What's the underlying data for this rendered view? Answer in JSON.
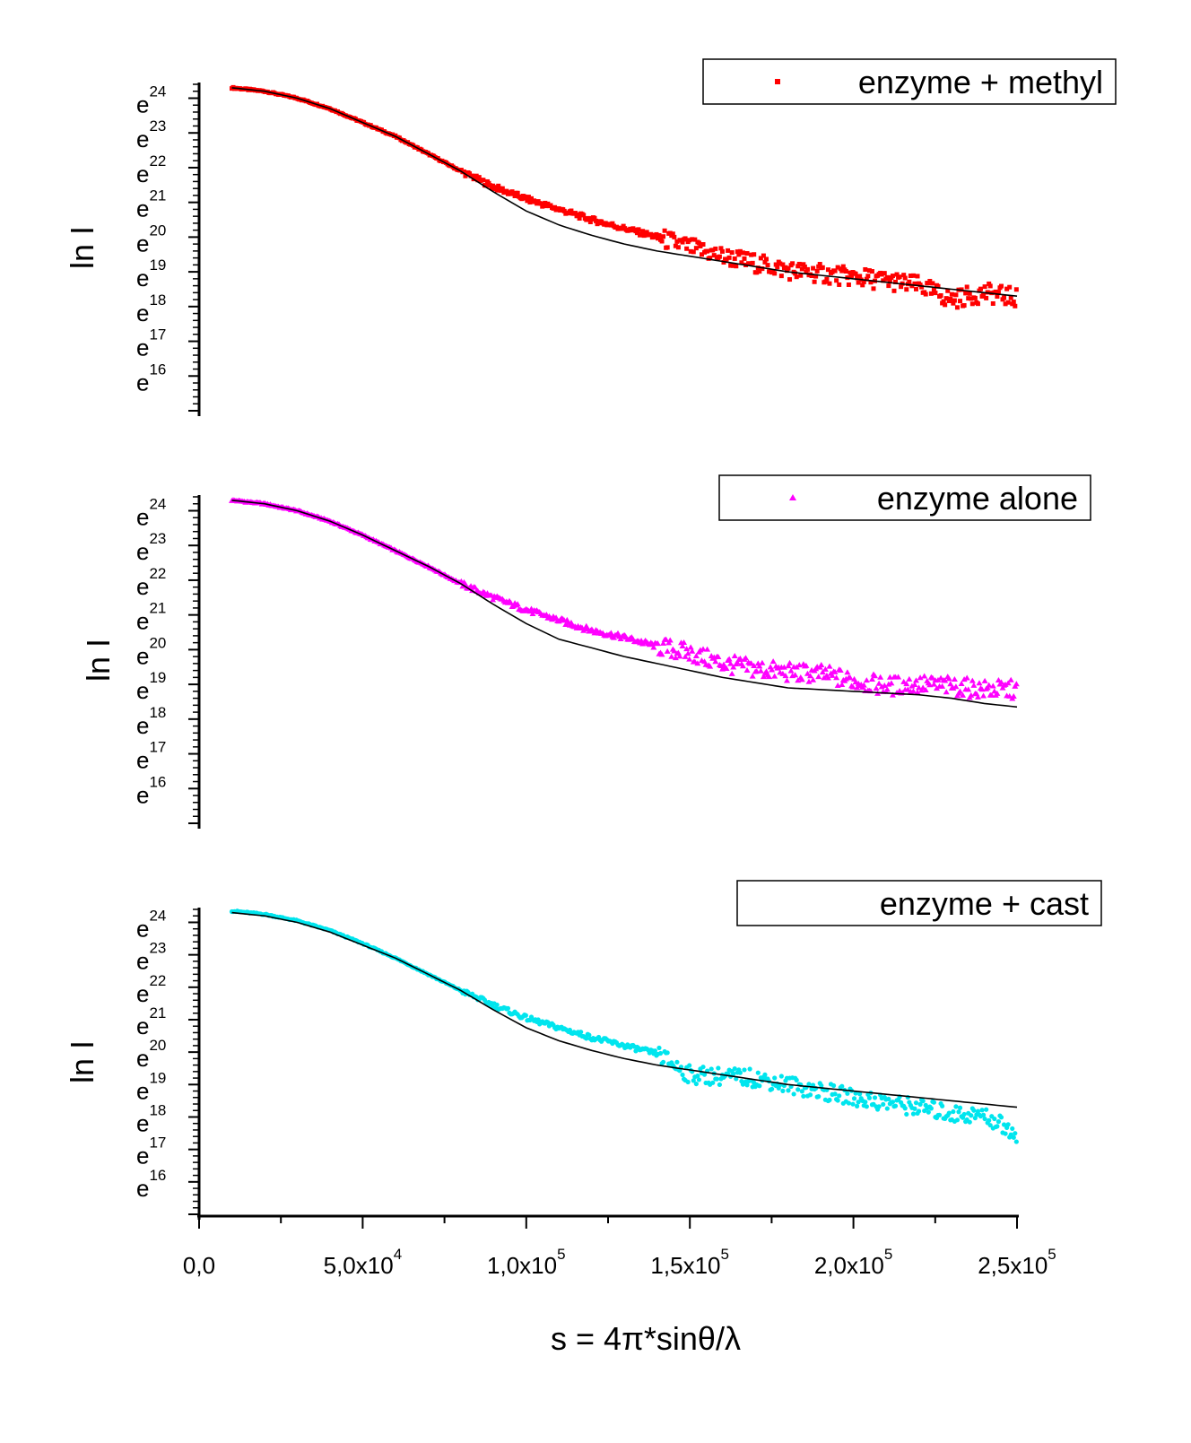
{
  "chart_data": [
    {
      "type": "scatter",
      "ylabel": "ln I",
      "ytick_labels": [
        "e16",
        "e17",
        "e18",
        "e19",
        "e20",
        "e21",
        "e22",
        "e23",
        "e24"
      ],
      "ylim": [
        15,
        24.4
      ],
      "xlim": [
        0,
        250000
      ],
      "legend": {
        "position": "top-right",
        "label": "enzyme + methyl",
        "marker": "square",
        "color": "#ff0000"
      },
      "series": [
        {
          "name": "enzyme + methyl",
          "kind": "data",
          "color": "#ff0000",
          "marker": "square",
          "points": [
            [
              10000,
              24.3
            ],
            [
              20000,
              24.2
            ],
            [
              30000,
              24.0
            ],
            [
              40000,
              23.7
            ],
            [
              50000,
              23.3
            ],
            [
              60000,
              22.9
            ],
            [
              70000,
              22.4
            ],
            [
              80000,
              21.9
            ],
            [
              90000,
              21.45
            ],
            [
              100000,
              21.1
            ],
            [
              110000,
              20.8
            ],
            [
              120000,
              20.5
            ],
            [
              130000,
              20.25
            ],
            [
              140000,
              20.0
            ],
            [
              150000,
              19.7
            ],
            [
              160000,
              19.45
            ],
            [
              170000,
              19.25
            ],
            [
              180000,
              19.05
            ],
            [
              190000,
              18.95
            ],
            [
              200000,
              18.85
            ],
            [
              210000,
              18.75
            ],
            [
              220000,
              18.6
            ],
            [
              230000,
              18.2
            ],
            [
              240000,
              18.4
            ],
            [
              250000,
              18.25
            ]
          ]
        },
        {
          "kind": "fit",
          "color": "#000000",
          "points": [
            [
              10000,
              24.3
            ],
            [
              20000,
              24.2
            ],
            [
              30000,
              24.0
            ],
            [
              40000,
              23.7
            ],
            [
              50000,
              23.3
            ],
            [
              60000,
              22.9
            ],
            [
              70000,
              22.4
            ],
            [
              80000,
              21.9
            ],
            [
              90000,
              21.3
            ],
            [
              100000,
              20.75
            ],
            [
              110000,
              20.35
            ],
            [
              120000,
              20.05
            ],
            [
              130000,
              19.8
            ],
            [
              140000,
              19.6
            ],
            [
              150000,
              19.45
            ],
            [
              160000,
              19.3
            ],
            [
              170000,
              19.15
            ],
            [
              180000,
              19.0
            ],
            [
              190000,
              18.9
            ],
            [
              200000,
              18.8
            ],
            [
              210000,
              18.7
            ],
            [
              220000,
              18.6
            ],
            [
              230000,
              18.5
            ],
            [
              240000,
              18.4
            ],
            [
              250000,
              18.3
            ]
          ]
        }
      ]
    },
    {
      "type": "scatter",
      "ylabel": "ln I",
      "ytick_labels": [
        "e16",
        "e17",
        "e18",
        "e19",
        "e20",
        "e21",
        "e22",
        "e23",
        "e24"
      ],
      "ylim": [
        15,
        24.4
      ],
      "xlim": [
        0,
        250000
      ],
      "legend": {
        "position": "top-right",
        "label": "enzyme alone",
        "marker": "triangle",
        "color": "#ff00ff"
      },
      "series": [
        {
          "name": "enzyme alone",
          "kind": "data",
          "color": "#ff00ff",
          "marker": "triangle",
          "points": [
            [
              10000,
              24.3
            ],
            [
              20000,
              24.2
            ],
            [
              30000,
              24.0
            ],
            [
              40000,
              23.7
            ],
            [
              50000,
              23.3
            ],
            [
              60000,
              22.85
            ],
            [
              70000,
              22.4
            ],
            [
              80000,
              21.9
            ],
            [
              90000,
              21.5
            ],
            [
              100000,
              21.15
            ],
            [
              110000,
              20.85
            ],
            [
              120000,
              20.55
            ],
            [
              130000,
              20.35
            ],
            [
              140000,
              20.1
            ],
            [
              150000,
              19.9
            ],
            [
              160000,
              19.6
            ],
            [
              170000,
              19.45
            ],
            [
              180000,
              19.35
            ],
            [
              190000,
              19.3
            ],
            [
              200000,
              19.1
            ],
            [
              210000,
              18.95
            ],
            [
              220000,
              19.0
            ],
            [
              230000,
              18.95
            ],
            [
              240000,
              18.85
            ],
            [
              250000,
              18.85
            ]
          ]
        },
        {
          "kind": "fit",
          "color": "#000000",
          "points": [
            [
              10000,
              24.3
            ],
            [
              20000,
              24.2
            ],
            [
              30000,
              24.0
            ],
            [
              40000,
              23.7
            ],
            [
              50000,
              23.3
            ],
            [
              60000,
              22.85
            ],
            [
              70000,
              22.4
            ],
            [
              80000,
              21.9
            ],
            [
              90000,
              21.3
            ],
            [
              100000,
              20.75
            ],
            [
              110000,
              20.3
            ],
            [
              120000,
              20.05
            ],
            [
              130000,
              19.8
            ],
            [
              140000,
              19.6
            ],
            [
              150000,
              19.4
            ],
            [
              160000,
              19.2
            ],
            [
              170000,
              19.05
            ],
            [
              180000,
              18.9
            ],
            [
              190000,
              18.85
            ],
            [
              200000,
              18.8
            ],
            [
              210000,
              18.75
            ],
            [
              220000,
              18.7
            ],
            [
              230000,
              18.6
            ],
            [
              240000,
              18.45
            ],
            [
              250000,
              18.35
            ]
          ]
        }
      ]
    },
    {
      "type": "scatter",
      "ylabel": "ln I",
      "xlabel": "s = 4π*sinθ/λ",
      "ytick_labels": [
        "e16",
        "e17",
        "e18",
        "e19",
        "e20",
        "e21",
        "e22",
        "e23",
        "e24"
      ],
      "xtick_labels": [
        {
          "value": 0,
          "base": "0,0",
          "exp": ""
        },
        {
          "value": 50000,
          "base": "5,0x10",
          "exp": "4"
        },
        {
          "value": 100000,
          "base": "1,0x10",
          "exp": "5"
        },
        {
          "value": 150000,
          "base": "1,5x10",
          "exp": "5"
        },
        {
          "value": 200000,
          "base": "2,0x10",
          "exp": "5"
        },
        {
          "value": 250000,
          "base": "2,5x10",
          "exp": "5"
        }
      ],
      "ylim": [
        15,
        24.4
      ],
      "xlim": [
        0,
        250000
      ],
      "legend": {
        "position": "top-right",
        "label": "enzyme + cast",
        "marker": "none",
        "color": "#000000"
      },
      "series": [
        {
          "name": "enzyme + cast",
          "kind": "data",
          "color": "#00e5ee",
          "marker": "circle",
          "points": [
            [
              10000,
              24.35
            ],
            [
              20000,
              24.25
            ],
            [
              30000,
              24.05
            ],
            [
              40000,
              23.75
            ],
            [
              50000,
              23.35
            ],
            [
              60000,
              22.9
            ],
            [
              70000,
              22.4
            ],
            [
              80000,
              21.9
            ],
            [
              90000,
              21.45
            ],
            [
              100000,
              21.05
            ],
            [
              110000,
              20.75
            ],
            [
              120000,
              20.45
            ],
            [
              130000,
              20.2
            ],
            [
              140000,
              19.95
            ],
            [
              150000,
              19.3
            ],
            [
              160000,
              19.25
            ],
            [
              170000,
              19.2
            ],
            [
              180000,
              19.0
            ],
            [
              190000,
              18.8
            ],
            [
              200000,
              18.6
            ],
            [
              210000,
              18.45
            ],
            [
              220000,
              18.3
            ],
            [
              230000,
              18.1
            ],
            [
              240000,
              18.05
            ],
            [
              250000,
              17.5
            ]
          ]
        },
        {
          "kind": "fit",
          "color": "#000000",
          "points": [
            [
              10000,
              24.3
            ],
            [
              20000,
              24.2
            ],
            [
              30000,
              24.0
            ],
            [
              40000,
              23.7
            ],
            [
              50000,
              23.3
            ],
            [
              60000,
              22.9
            ],
            [
              70000,
              22.4
            ],
            [
              80000,
              21.9
            ],
            [
              90000,
              21.3
            ],
            [
              100000,
              20.75
            ],
            [
              110000,
              20.35
            ],
            [
              120000,
              20.05
            ],
            [
              130000,
              19.8
            ],
            [
              140000,
              19.6
            ],
            [
              150000,
              19.45
            ],
            [
              160000,
              19.3
            ],
            [
              170000,
              19.15
            ],
            [
              180000,
              19.0
            ],
            [
              190000,
              18.9
            ],
            [
              200000,
              18.8
            ],
            [
              210000,
              18.7
            ],
            [
              220000,
              18.6
            ],
            [
              230000,
              18.5
            ],
            [
              240000,
              18.4
            ],
            [
              250000,
              18.3
            ]
          ]
        }
      ]
    }
  ]
}
